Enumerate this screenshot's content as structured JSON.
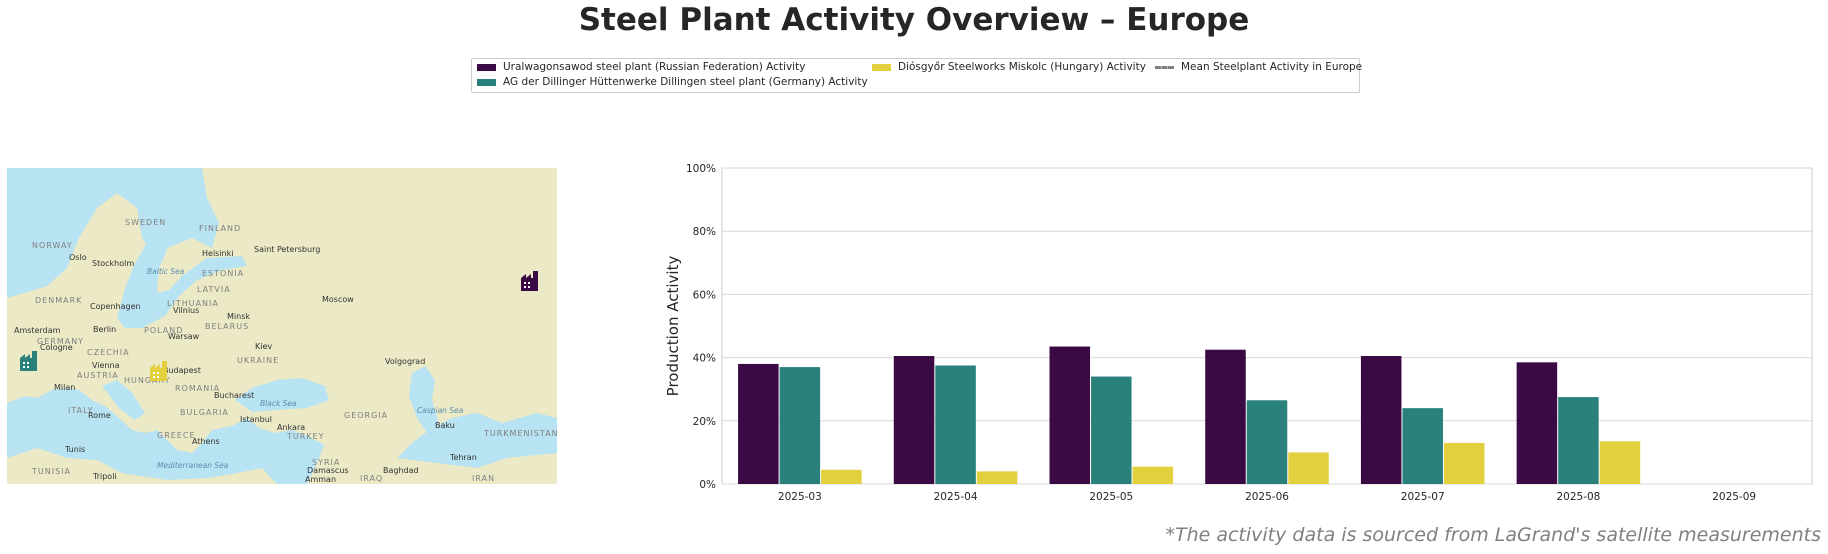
{
  "title": "Steel Plant Activity Overview – Europe",
  "footnote": "*The activity data is sourced from LaGrand's satellite measurements",
  "legend": {
    "items": [
      {
        "label": "Uralwagonsawod steel plant (Russian Federation) Activity",
        "color": "#3b0a45",
        "style": "bar"
      },
      {
        "label": "AG der Dillinger Hüttenwerke Dillingen steel plant (Germany) Activity",
        "color": "#2a817c",
        "style": "bar"
      },
      {
        "label": "Diósgyőr Steelworks Miskolc (Hungary) Activity",
        "color": "#e3d03f",
        "style": "bar"
      },
      {
        "label": "Mean Steelplant Activity in Europe",
        "color": "#808080",
        "style": "dashed-line"
      }
    ]
  },
  "map": {
    "labels": {
      "sweden": "SWEDEN",
      "finland": "FINLAND",
      "norway": "NORWAY",
      "oslo": "Oslo",
      "stockholm": "Stockholm",
      "helsinki": "Helsinki",
      "saint_petersburg": "Saint Petersburg",
      "baltic_sea": "Baltic Sea",
      "estonia": "ESTONIA",
      "latvia": "LATVIA",
      "denmark": "DENMARK",
      "copenhagen": "Copenhagen",
      "lithuania": "LITHUANIA",
      "vilnius": "Vilnius",
      "moscow": "Moscow",
      "minsk": "Minsk",
      "belarus": "BELARUS",
      "amsterdam": "Amsterdam",
      "berlin": "Berlin",
      "poland": "POLAND",
      "warsaw": "Warsaw",
      "germany": "GERMANY",
      "cologne": "Cologne",
      "kiev": "Kiev",
      "ukraine": "UKRAINE",
      "czechia": "CZECHIA",
      "vienna": "Vienna",
      "austria": "AUSTRIA",
      "budapest": "Budapest",
      "hungary": "HUNGARY",
      "volgograd": "Volgograd",
      "milan": "Milan",
      "romania": "ROMANIA",
      "bucharest": "Bucharest",
      "black_sea": "Black Sea",
      "italy": "ITALY",
      "rome": "Rome",
      "bulgaria": "BULGARIA",
      "istanbul": "Istanbul",
      "georgia": "GEORGIA",
      "caspian_sea": "Caspian Sea",
      "ankara": "Ankara",
      "turkey": "TURKEY",
      "baku": "Baku",
      "greece": "GREECE",
      "athens": "Athens",
      "turkmenistan": "TURKMENISTAN",
      "tunis": "Tunis",
      "syria": "SYRIA",
      "tehran": "Tehran",
      "tunisia": "TUNISIA",
      "mediterranean_sea": "Mediterranean Sea",
      "damascus": "Damascus",
      "baghdad": "Baghdad",
      "tripoli": "Tripoli",
      "amman": "Amman",
      "iraq": "IRAQ",
      "iran": "IRAN"
    },
    "markers": [
      {
        "plant": "Uralwagonsawod",
        "color": "#3b0a45",
        "icon": "factory-icon"
      },
      {
        "plant": "Dillingen",
        "color": "#2a817c",
        "icon": "factory-icon"
      },
      {
        "plant": "Miskolc",
        "color": "#e3d03f",
        "icon": "factory-icon"
      }
    ],
    "colors": {
      "sea": "#b7e3f2",
      "land": "#ece9c6"
    }
  },
  "chart_data": {
    "type": "bar",
    "ylabel": "Production Activity",
    "xlabel": "",
    "categories": [
      "2025-03",
      "2025-04",
      "2025-05",
      "2025-06",
      "2025-07",
      "2025-08",
      "2025-09"
    ],
    "yticks": [
      "0%",
      "20%",
      "40%",
      "60%",
      "80%",
      "100%"
    ],
    "ylim": [
      0,
      100
    ],
    "grid": true,
    "series": [
      {
        "name": "Uralwagonsawod steel plant (Russian Federation) Activity",
        "color": "#3b0a45",
        "values": [
          38,
          40.5,
          43.5,
          42.5,
          40.5,
          38.5,
          null
        ]
      },
      {
        "name": "AG der Dillinger Hüttenwerke Dillingen steel plant (Germany) Activity",
        "color": "#2a817c",
        "values": [
          37,
          37.5,
          34,
          26.5,
          24,
          27.5,
          null
        ]
      },
      {
        "name": "Diósgyőr Steelworks Miskolc (Hungary) Activity",
        "color": "#e3d03f",
        "values": [
          4.5,
          4,
          5.5,
          10,
          13,
          13.5,
          null
        ]
      }
    ]
  }
}
